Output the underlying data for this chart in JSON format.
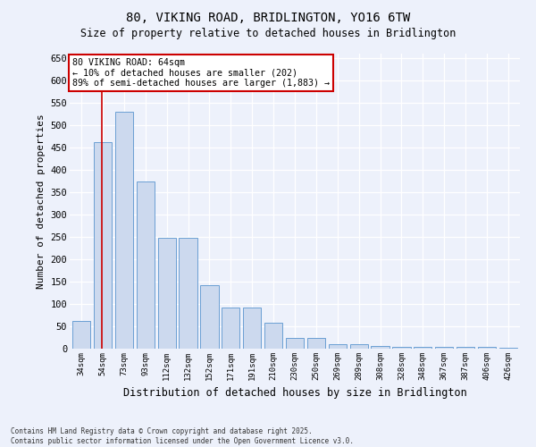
{
  "title_line1": "80, VIKING ROAD, BRIDLINGTON, YO16 6TW",
  "title_line2": "Size of property relative to detached houses in Bridlington",
  "xlabel": "Distribution of detached houses by size in Bridlington",
  "ylabel": "Number of detached properties",
  "categories": [
    "34sqm",
    "54sqm",
    "73sqm",
    "93sqm",
    "112sqm",
    "132sqm",
    "152sqm",
    "171sqm",
    "191sqm",
    "210sqm",
    "230sqm",
    "250sqm",
    "269sqm",
    "289sqm",
    "308sqm",
    "328sqm",
    "348sqm",
    "367sqm",
    "387sqm",
    "406sqm",
    "426sqm"
  ],
  "values": [
    62,
    462,
    530,
    375,
    248,
    248,
    142,
    92,
    92,
    58,
    25,
    25,
    10,
    10,
    7,
    5,
    5,
    4,
    4,
    4,
    3
  ],
  "bar_color": "#ccd9ee",
  "bar_edge_color": "#6b9fd4",
  "vline_x": 0.97,
  "vline_color": "#cc0000",
  "annotation_text": "80 VIKING ROAD: 64sqm\n← 10% of detached houses are smaller (202)\n89% of semi-detached houses are larger (1,883) →",
  "annotation_box_color": "#ffffff",
  "annotation_box_edge": "#cc0000",
  "ylim": [
    0,
    660
  ],
  "yticks": [
    0,
    50,
    100,
    150,
    200,
    250,
    300,
    350,
    400,
    450,
    500,
    550,
    600,
    650
  ],
  "footer_line1": "Contains HM Land Registry data © Crown copyright and database right 2025.",
  "footer_line2": "Contains public sector information licensed under the Open Government Licence v3.0.",
  "bg_color": "#edf1fb",
  "plot_bg_color": "#edf1fb",
  "grid_color": "#ffffff",
  "title_fontsize": 10,
  "subtitle_fontsize": 9
}
